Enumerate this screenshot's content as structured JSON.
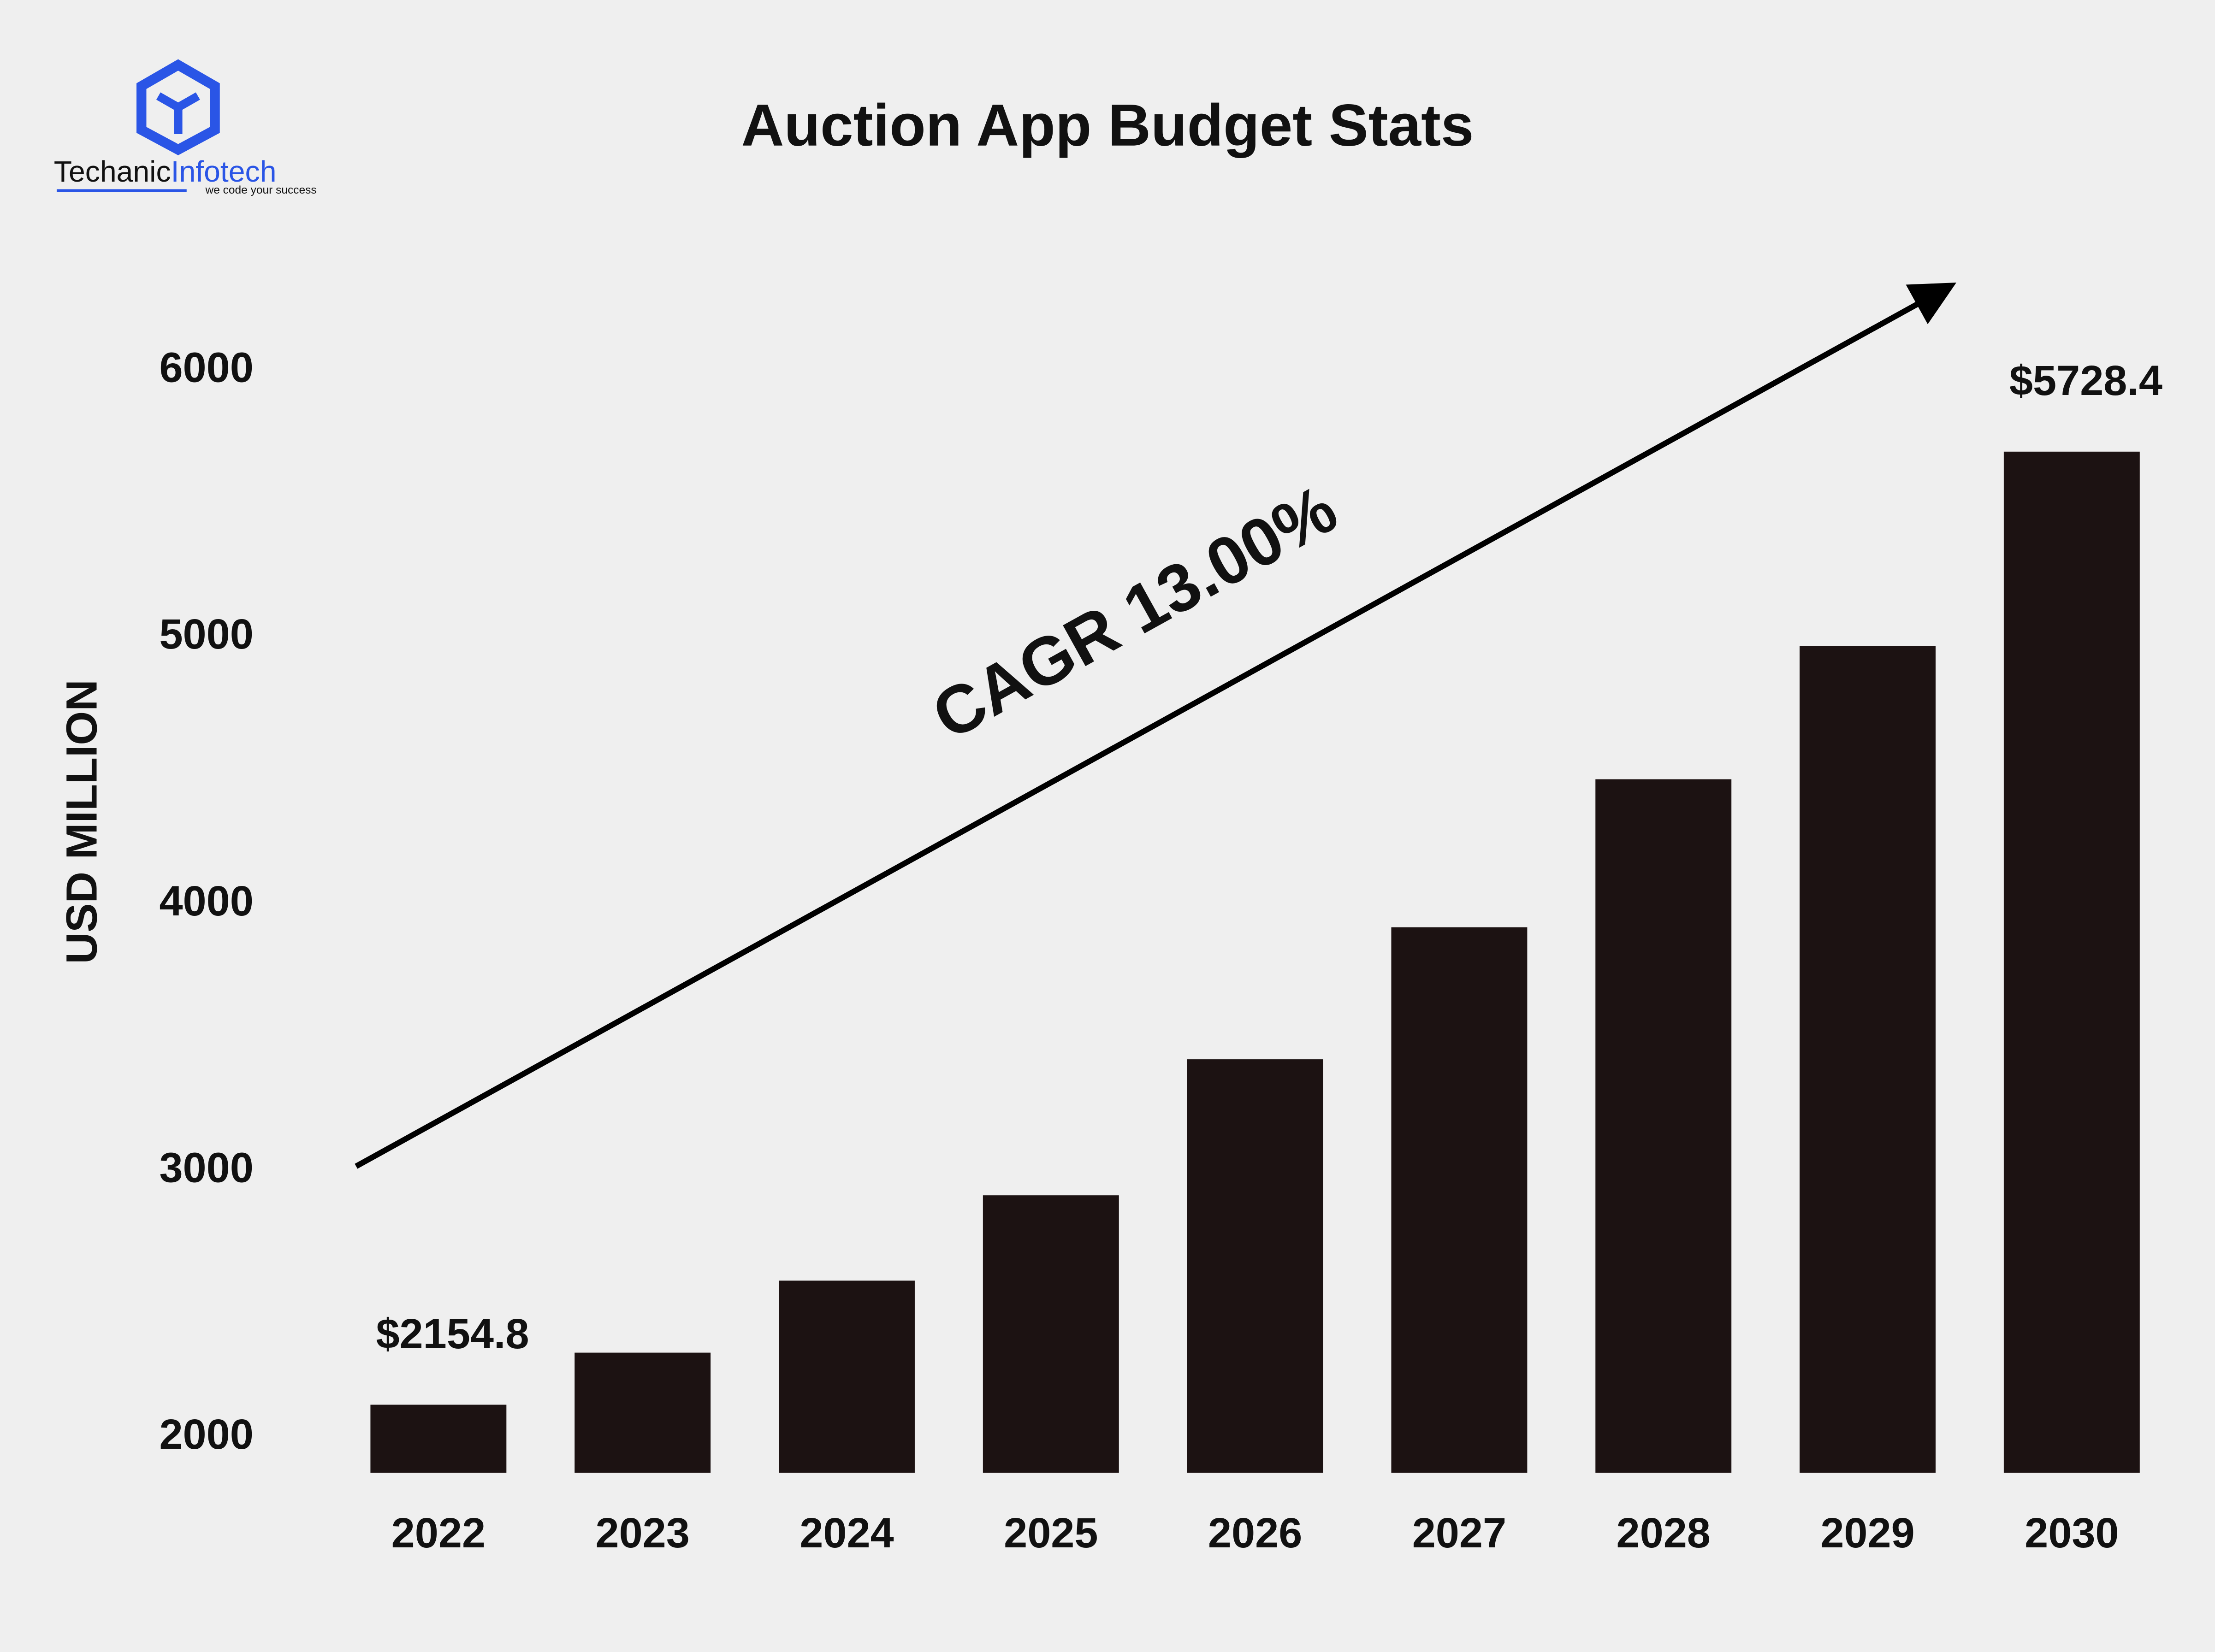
{
  "logo": {
    "name_dark": "Techanic",
    "name_blue": "Infotech",
    "tagline": "we code your success"
  },
  "chart_data": {
    "type": "bar",
    "title": "Auction App Budget Stats",
    "y_label": "USD MILLION",
    "categories": [
      "2022",
      "2023",
      "2024",
      "2025",
      "2026",
      "2027",
      "2028",
      "2029",
      "2030"
    ],
    "values": [
      2154.8,
      2350,
      2620,
      2940,
      3450,
      3945,
      4500,
      5000,
      5728.4
    ],
    "value_labels": [
      "$2154.8",
      null,
      null,
      null,
      null,
      null,
      null,
      null,
      "$5728.4"
    ],
    "color": "#1c1212",
    "ylim": [
      1900,
      6400
    ],
    "yticks": [
      2000,
      3000,
      4000,
      5000,
      6000
    ],
    "grid": false,
    "annotation": "CAGR 13.00%"
  }
}
